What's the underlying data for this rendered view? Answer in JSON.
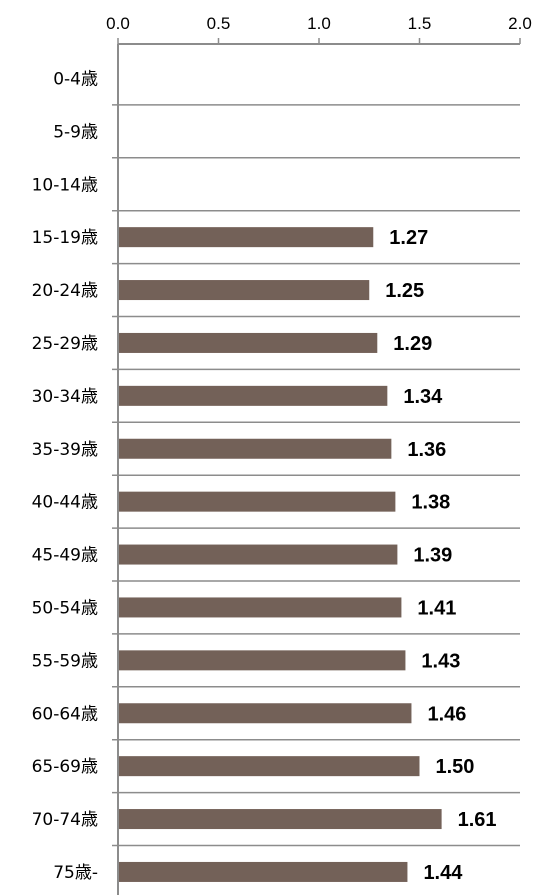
{
  "chart_data": {
    "type": "bar",
    "orientation": "horizontal",
    "title": "",
    "xlabel": "",
    "ylabel": "",
    "xlim": [
      0.0,
      2.0
    ],
    "x_ticks": [
      "0.0",
      "0.5",
      "1.0",
      "1.5",
      "2.0"
    ],
    "x_axis_position": "top",
    "grid": "horizontal separators",
    "categories": [
      "0-4歳",
      "5-9歳",
      "10-14歳",
      "15-19歳",
      "20-24歳",
      "25-29歳",
      "30-34歳",
      "35-39歳",
      "40-44歳",
      "45-49歳",
      "50-54歳",
      "55-59歳",
      "60-64歳",
      "65-69歳",
      "70-74歳",
      "75歳-"
    ],
    "values": [
      null,
      null,
      null,
      1.27,
      1.25,
      1.29,
      1.34,
      1.36,
      1.38,
      1.39,
      1.41,
      1.43,
      1.46,
      1.5,
      1.61,
      1.44
    ],
    "data_labels": [
      "",
      "",
      "",
      "1.27",
      "1.25",
      "1.29",
      "1.34",
      "1.36",
      "1.38",
      "1.39",
      "1.41",
      "1.43",
      "1.46",
      "1.50",
      "1.61",
      "1.44"
    ],
    "bar_color": "#736158",
    "grid_color": "#8c8c8c"
  }
}
